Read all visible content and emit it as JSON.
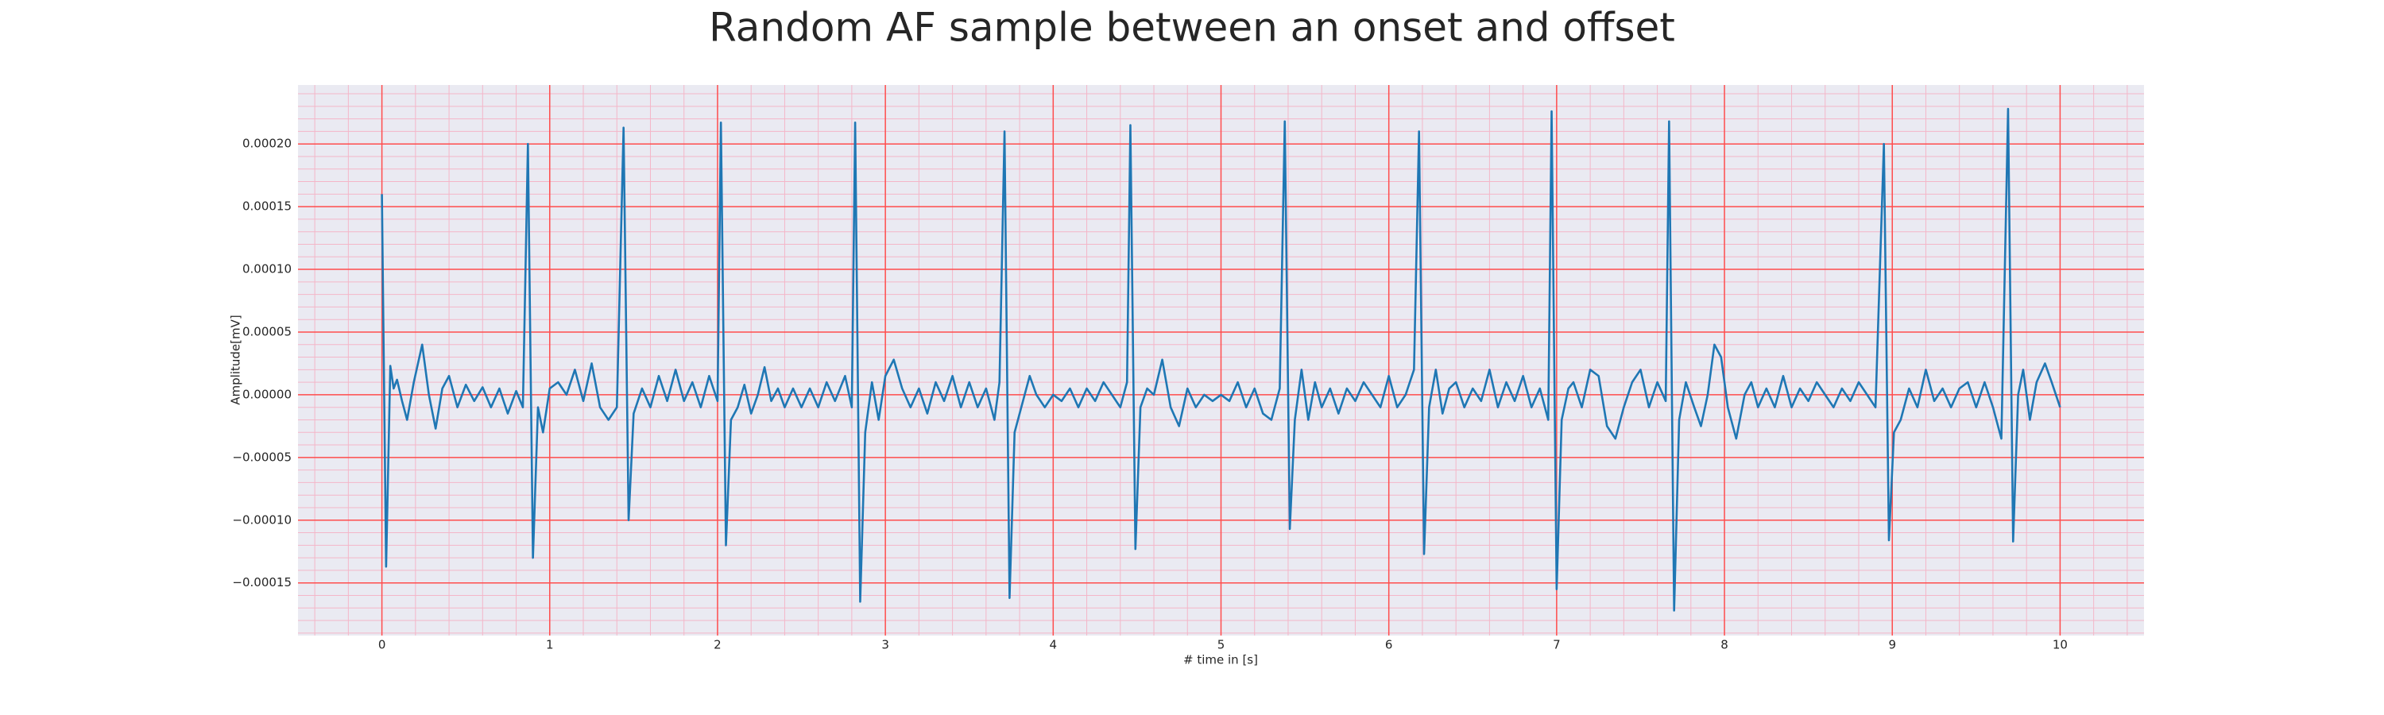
{
  "chart_data": {
    "type": "line",
    "title": "Random AF sample between an onset and offset",
    "x_label": "# time in [s]",
    "y_label": "Amplitude[mV]",
    "xlim": [
      -0.5,
      10.5
    ],
    "ylim": [
      -0.000192,
      0.000247
    ],
    "xticks": [
      0,
      1,
      2,
      3,
      4,
      5,
      6,
      7,
      8,
      9,
      10
    ],
    "yticks": [
      {
        "value": -0.00015,
        "label": "−0.00015"
      },
      {
        "value": -0.0001,
        "label": "−0.00010"
      },
      {
        "value": -5e-05,
        "label": "−0.00005"
      },
      {
        "value": 0,
        "label": "0.00000"
      },
      {
        "value": 5e-05,
        "label": "0.00005"
      },
      {
        "value": 0.0001,
        "label": "0.00010"
      },
      {
        "value": 0.00015,
        "label": "0.00015"
      },
      {
        "value": 0.0002,
        "label": "0.00020"
      }
    ],
    "grid": true,
    "grid_color": "#ff4d4d",
    "minor_grid": true,
    "minor_grid_divisions": 5,
    "minor_grid_color": "#f4b6c8",
    "background": "#eaeaf2",
    "series": [
      {
        "color": "#1f77b4",
        "x": [
          0,
          0.025,
          0.05,
          0.07,
          0.09,
          0.12,
          0.15,
          0.19,
          0.24,
          0.28,
          0.32,
          0.36,
          0.4,
          0.45,
          0.5,
          0.55,
          0.6,
          0.65,
          0.7,
          0.75,
          0.8,
          0.84,
          0.87,
          0.9,
          0.93,
          0.96,
          1,
          1.05,
          1.1,
          1.15,
          1.2,
          1.25,
          1.3,
          1.35,
          1.4,
          1.44,
          1.47,
          1.5,
          1.55,
          1.6,
          1.65,
          1.7,
          1.75,
          1.8,
          1.85,
          1.9,
          1.95,
          2,
          2.02,
          2.05,
          2.08,
          2.12,
          2.16,
          2.2,
          2.24,
          2.28,
          2.32,
          2.36,
          2.4,
          2.45,
          2.5,
          2.55,
          2.6,
          2.65,
          2.7,
          2.76,
          2.8,
          2.82,
          2.85,
          2.88,
          2.92,
          2.96,
          3,
          3.05,
          3.1,
          3.15,
          3.2,
          3.25,
          3.3,
          3.35,
          3.4,
          3.45,
          3.5,
          3.55,
          3.6,
          3.65,
          3.68,
          3.71,
          3.74,
          3.77,
          3.81,
          3.86,
          3.9,
          3.95,
          4,
          4.05,
          4.1,
          4.15,
          4.2,
          4.25,
          4.3,
          4.35,
          4.4,
          4.44,
          4.46,
          4.49,
          4.52,
          4.56,
          4.6,
          4.65,
          4.7,
          4.75,
          4.8,
          4.85,
          4.9,
          4.95,
          5,
          5.05,
          5.1,
          5.15,
          5.2,
          5.25,
          5.3,
          5.35,
          5.38,
          5.41,
          5.44,
          5.48,
          5.52,
          5.56,
          5.6,
          5.65,
          5.7,
          5.75,
          5.8,
          5.85,
          5.9,
          5.95,
          6,
          6.05,
          6.1,
          6.15,
          6.18,
          6.21,
          6.24,
          6.28,
          6.32,
          6.36,
          6.4,
          6.45,
          6.5,
          6.55,
          6.6,
          6.65,
          6.7,
          6.75,
          6.8,
          6.85,
          6.9,
          6.95,
          6.97,
          7,
          7.03,
          7.07,
          7.1,
          7.15,
          7.2,
          7.25,
          7.3,
          7.35,
          7.4,
          7.45,
          7.5,
          7.55,
          7.6,
          7.65,
          7.67,
          7.7,
          7.73,
          7.77,
          7.82,
          7.86,
          7.9,
          7.94,
          7.98,
          8.02,
          8.07,
          8.12,
          8.16,
          8.2,
          8.25,
          8.3,
          8.35,
          8.4,
          8.45,
          8.5,
          8.55,
          8.6,
          8.65,
          8.7,
          8.75,
          8.8,
          8.85,
          8.9,
          8.95,
          8.98,
          9.01,
          9.05,
          9.1,
          9.15,
          9.2,
          9.25,
          9.3,
          9.35,
          9.4,
          9.45,
          9.5,
          9.55,
          9.6,
          9.65,
          9.69,
          9.72,
          9.75,
          9.78,
          9.82,
          9.86,
          9.91,
          9.95,
          10
        ],
        "values": [
          0.00016,
          -0.000137,
          2.3e-05,
          5e-06,
          1.2e-05,
          -5e-06,
          -2e-05,
          1e-05,
          4e-05,
          0,
          -2.7e-05,
          5e-06,
          1.5e-05,
          -1e-05,
          8e-06,
          -5e-06,
          6e-06,
          -1e-05,
          5e-06,
          -1.5e-05,
          3e-06,
          -1e-05,
          0.0002,
          -0.00013,
          -1e-05,
          -3e-05,
          5e-06,
          1e-05,
          0,
          2e-05,
          -5e-06,
          2.5e-05,
          -1e-05,
          -2e-05,
          -1e-05,
          0.000213,
          -0.0001,
          -1.5e-05,
          5e-06,
          -1e-05,
          1.5e-05,
          -5e-06,
          2e-05,
          -5e-06,
          1e-05,
          -1e-05,
          1.5e-05,
          -5e-06,
          0.000217,
          -0.00012,
          -2e-05,
          -1e-05,
          8e-06,
          -1.5e-05,
          0,
          2.2e-05,
          -5e-06,
          5e-06,
          -1e-05,
          5e-06,
          -1e-05,
          5e-06,
          -1e-05,
          1e-05,
          -5e-06,
          1.5e-05,
          -1e-05,
          0.000217,
          -0.000165,
          -3e-05,
          1e-05,
          -2e-05,
          1.5e-05,
          2.8e-05,
          5e-06,
          -1e-05,
          5e-06,
          -1.5e-05,
          1e-05,
          -5e-06,
          1.5e-05,
          -1e-05,
          1e-05,
          -1e-05,
          5e-06,
          -2e-05,
          1e-05,
          0.00021,
          -0.000162,
          -3e-05,
          -1e-05,
          1.5e-05,
          0,
          -1e-05,
          0,
          -5e-06,
          5e-06,
          -1e-05,
          5e-06,
          -5e-06,
          1e-05,
          0,
          -1e-05,
          1e-05,
          0.000215,
          -0.000123,
          -1e-05,
          5e-06,
          0,
          2.8e-05,
          -1e-05,
          -2.5e-05,
          5e-06,
          -1e-05,
          0,
          -5e-06,
          0,
          -5e-06,
          1e-05,
          -1e-05,
          5e-06,
          -1.5e-05,
          -2e-05,
          5e-06,
          0.000218,
          -0.000107,
          -2e-05,
          2e-05,
          -2e-05,
          1e-05,
          -1e-05,
          5e-06,
          -1.5e-05,
          5e-06,
          -5e-06,
          1e-05,
          0,
          -1e-05,
          1.5e-05,
          -1e-05,
          0,
          2e-05,
          0.00021,
          -0.000127,
          -1e-05,
          2e-05,
          -1.5e-05,
          5e-06,
          1e-05,
          -1e-05,
          5e-06,
          -5e-06,
          2e-05,
          -1e-05,
          1e-05,
          -5e-06,
          1.5e-05,
          -1e-05,
          5e-06,
          -2e-05,
          0.000226,
          -0.000155,
          -2e-05,
          5e-06,
          1e-05,
          -1e-05,
          2e-05,
          1.5e-05,
          -2.5e-05,
          -3.5e-05,
          -1e-05,
          1e-05,
          2e-05,
          -1e-05,
          1e-05,
          -5e-06,
          0.000218,
          -0.000172,
          -2e-05,
          1e-05,
          -1e-05,
          -2.5e-05,
          0,
          4e-05,
          3e-05,
          -1e-05,
          -3.5e-05,
          0,
          1e-05,
          -1e-05,
          5e-06,
          -1e-05,
          1.5e-05,
          -1e-05,
          5e-06,
          -5e-06,
          1e-05,
          0,
          -1e-05,
          5e-06,
          -5e-06,
          1e-05,
          0,
          -1e-05,
          0.0002,
          -0.000116,
          -3e-05,
          -2e-05,
          5e-06,
          -1e-05,
          2e-05,
          -5e-06,
          5e-06,
          -1e-05,
          5e-06,
          1e-05,
          -1e-05,
          1e-05,
          -1e-05,
          -3.5e-05,
          0.000228,
          -0.000117,
          0,
          2e-05,
          -2e-05,
          1e-05,
          2.5e-05,
          1e-05,
          -1e-05
        ]
      }
    ]
  }
}
